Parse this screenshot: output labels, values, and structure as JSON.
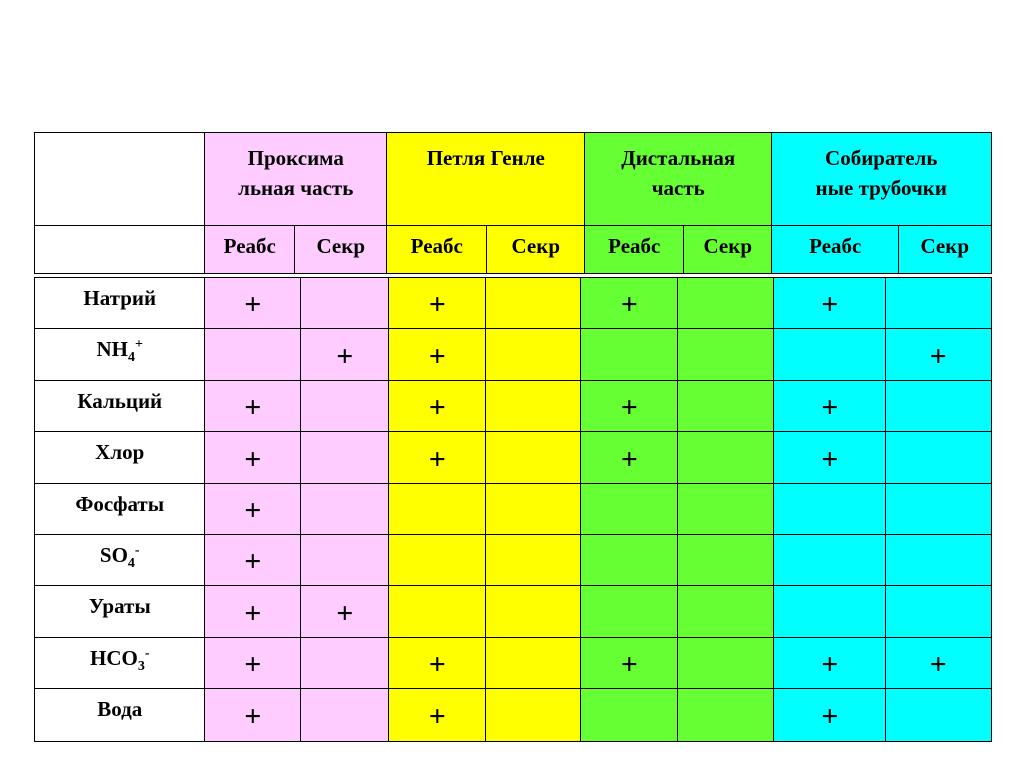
{
  "colors": {
    "proximal": "#ffccff",
    "henle": "#ffff00",
    "distal": "#66ff33",
    "collecting": "#00ffff",
    "label": "#ffffff"
  },
  "header": {
    "segments": [
      {
        "title": "Проксима льная часть",
        "color": "proximal"
      },
      {
        "title": "Петля Генле",
        "color": "henle"
      },
      {
        "title": "Дистальная часть",
        "color": "distal"
      },
      {
        "title": "Собиратель ные трубочки",
        "color": "collecting"
      }
    ],
    "sub_labels": [
      "Реабс",
      "Секр",
      "Реабс",
      "Секр",
      "Реабс",
      "Секр",
      "Реабс",
      "Секр"
    ]
  },
  "rows": [
    {
      "name": "Натрий",
      "sub": "",
      "sup": "",
      "marks": [
        "+",
        "",
        "+",
        "",
        "+",
        "",
        "+",
        ""
      ]
    },
    {
      "name": "NH",
      "sub": "4",
      "sup": "+",
      "marks": [
        "",
        "+",
        "+",
        "",
        "",
        "",
        "",
        "+"
      ]
    },
    {
      "name": "Кальций",
      "sub": "",
      "sup": "",
      "marks": [
        "+",
        "",
        "+",
        "",
        "+",
        "",
        "+",
        ""
      ]
    },
    {
      "name": "Хлор",
      "sub": "",
      "sup": "",
      "marks": [
        "+",
        "",
        "+",
        "",
        "+",
        "",
        "+",
        ""
      ]
    },
    {
      "name": "Фосфаты",
      "sub": "",
      "sup": "",
      "marks": [
        "+",
        "",
        "",
        "",
        "",
        "",
        "",
        ""
      ]
    },
    {
      "name": "SO",
      "sub": "4",
      "sup": "-",
      "marks": [
        "+",
        "",
        "",
        "",
        "",
        "",
        "",
        ""
      ]
    },
    {
      "name": "Ураты",
      "sub": "",
      "sup": "",
      "marks": [
        "+",
        "+",
        "",
        "",
        "",
        "",
        "",
        ""
      ]
    },
    {
      "name": "HCO",
      "sub": "3",
      "sup": "-",
      "marks": [
        "+",
        "",
        "+",
        "",
        "+",
        "",
        "+",
        "+"
      ]
    },
    {
      "name": "Вода",
      "sub": "",
      "sup": "",
      "marks": [
        "+",
        "",
        "+",
        "",
        "",
        "",
        "+",
        ""
      ]
    }
  ]
}
